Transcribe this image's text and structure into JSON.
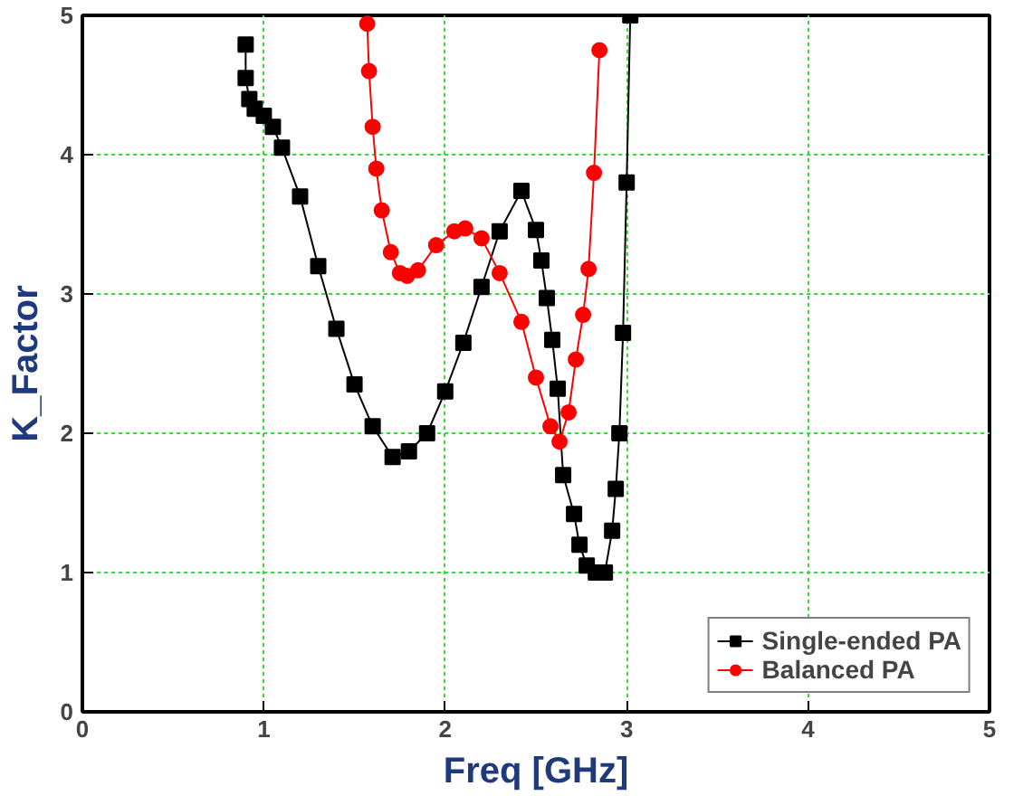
{
  "chart_data": {
    "type": "line",
    "xlabel": "Freq [GHz]",
    "ylabel": "K_Factor",
    "xlim": [
      0,
      5
    ],
    "ylim": [
      0,
      5
    ],
    "xticks": [
      0,
      1,
      2,
      3,
      4,
      5
    ],
    "yticks": [
      0,
      1,
      2,
      3,
      4,
      5
    ],
    "grid": true,
    "legend": "bottom right",
    "line_style": "solid",
    "series": [
      {
        "name": "Single-ended PA",
        "color": "#000000",
        "marker": "square",
        "x": [
          0.9,
          0.9,
          0.92,
          0.95,
          1.0,
          1.05,
          1.1,
          1.2,
          1.3,
          1.4,
          1.5,
          1.6,
          1.71,
          1.8,
          1.9,
          2.0,
          2.1,
          2.2,
          2.3,
          2.42,
          2.5,
          2.53,
          2.56,
          2.59,
          2.62,
          2.65,
          2.71,
          2.74,
          2.78,
          2.83,
          2.88,
          2.92,
          2.94,
          2.96,
          2.98,
          3.0,
          3.02
        ],
        "values": [
          4.79,
          4.55,
          4.4,
          4.33,
          4.28,
          4.2,
          4.05,
          3.7,
          3.2,
          2.75,
          2.35,
          2.05,
          1.83,
          1.87,
          2.0,
          2.3,
          2.65,
          3.05,
          3.45,
          3.74,
          3.46,
          3.24,
          2.97,
          2.67,
          2.32,
          1.7,
          1.42,
          1.2,
          1.05,
          1.0,
          1.0,
          1.3,
          1.6,
          2.0,
          2.72,
          3.8,
          5.0
        ]
      },
      {
        "name": "Balanced PA",
        "color": "#ff0000",
        "marker": "circle",
        "x": [
          1.57,
          1.58,
          1.6,
          1.62,
          1.65,
          1.7,
          1.75,
          1.79,
          1.85,
          1.95,
          2.05,
          2.11,
          2.2,
          2.3,
          2.42,
          2.5,
          2.58,
          2.63,
          2.68,
          2.72,
          2.76,
          2.79,
          2.82,
          2.85
        ],
        "values": [
          4.94,
          4.6,
          4.2,
          3.9,
          3.6,
          3.3,
          3.15,
          3.13,
          3.17,
          3.35,
          3.45,
          3.47,
          3.4,
          3.15,
          2.8,
          2.4,
          2.05,
          1.94,
          2.15,
          2.53,
          2.85,
          3.18,
          3.87,
          4.75
        ]
      }
    ]
  }
}
